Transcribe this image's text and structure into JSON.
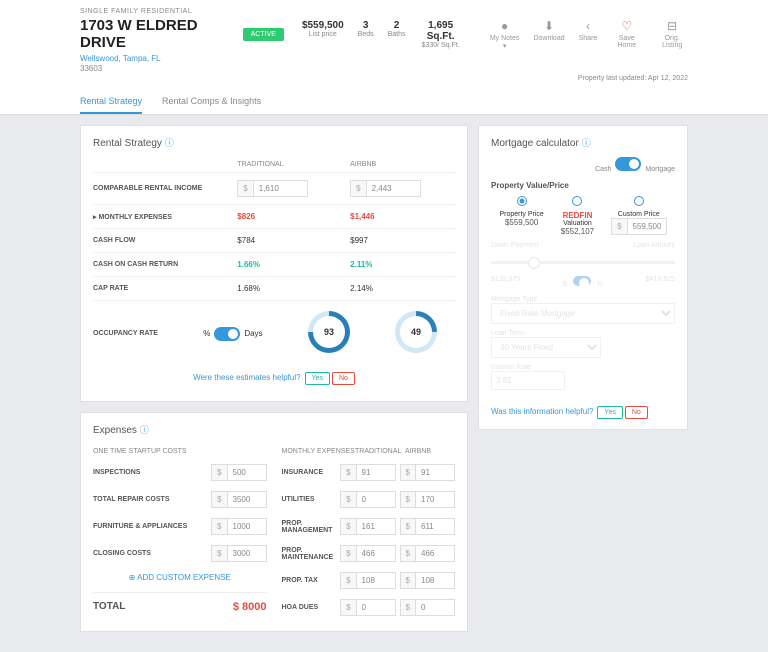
{
  "header": {
    "ptype": "SINGLE FAMILY RESIDENTIAL",
    "address": "1703 W ELDRED DRIVE",
    "status": "ACTIVE",
    "location": "Wellswood, Tampa, FL",
    "zip": "33603",
    "updated": "Property last updated: Apr 12, 2022"
  },
  "stats": [
    {
      "v": "$559,500",
      "l": "List price"
    },
    {
      "v": "3",
      "l": "Beds"
    },
    {
      "v": "2",
      "l": "Baths"
    },
    {
      "v": "1,695 Sq.Ft.",
      "l": "$330/ Sq.Ft."
    }
  ],
  "actions": [
    {
      "l": "My Notes ▾"
    },
    {
      "l": "Download"
    },
    {
      "l": "Share"
    },
    {
      "l": "Save Home"
    },
    {
      "l": "Orig. Listing"
    }
  ],
  "tabs": [
    {
      "l": "Rental Strategy",
      "a": true
    },
    {
      "l": "Rental Comps & Insights",
      "a": false
    }
  ],
  "rental": {
    "title": "Rental Strategy",
    "cols": [
      "TRADITIONAL",
      "AIRBNB"
    ],
    "rows": [
      {
        "lbl": "COMPARABLE RENTAL INCOME",
        "t": "1,610",
        "a": "2,443",
        "type": "input"
      },
      {
        "lbl": "▸ MONTHLY EXPENSES",
        "t": "$826",
        "a": "$1,446",
        "type": "red"
      },
      {
        "lbl": "CASH FLOW",
        "t": "$784",
        "a": "$997",
        "type": "plain"
      },
      {
        "lbl": "CASH ON CASH RETURN",
        "t": "1.66%",
        "a": "2.11%",
        "type": "grn"
      },
      {
        "lbl": "CAP RATE",
        "t": "1.68%",
        "a": "2.14%",
        "type": "plain"
      }
    ],
    "occ": {
      "lbl": "OCCUPANCY RATE",
      "unit1": "%",
      "unit2": "Days",
      "v1": "93",
      "v2": "49"
    },
    "helpful": "Were these estimates helpful?",
    "yes": "Yes",
    "no": "No"
  },
  "expenses": {
    "title": "Expenses",
    "h1": "ONE TIME STARTUP COSTS",
    "h2": "MONTHLY EXPENSES",
    "h3": "TRADITIONAL",
    "h4": "AIRBNB",
    "startup": [
      {
        "l": "INSPECTIONS",
        "v": "500"
      },
      {
        "l": "TOTAL REPAIR COSTS",
        "v": "3500"
      },
      {
        "l": "FURNITURE & APPLIANCES",
        "v": "1000"
      },
      {
        "l": "CLOSING COSTS",
        "v": "3000"
      }
    ],
    "monthly": [
      {
        "l": "INSURANCE",
        "t": "91",
        "a": "91"
      },
      {
        "l": "UTILITIES",
        "t": "0",
        "a": "170"
      },
      {
        "l": "PROP. MANAGEMENT",
        "t": "161",
        "a": "611"
      },
      {
        "l": "PROP. MAINTENANCE",
        "t": "466",
        "a": "466"
      },
      {
        "l": "PROP. TAX",
        "t": "108",
        "a": "108"
      },
      {
        "l": "HOA DUES",
        "t": "0",
        "a": "0"
      }
    ],
    "add": "ADD CUSTOM EXPENSE",
    "total_l": "TOTAL",
    "total_v": "$ 8000"
  },
  "mortgage": {
    "title": "Mortgage calculator",
    "tog1": "Cash",
    "tog2": "Mortgage",
    "sec": "Property Value/Price",
    "opts": [
      {
        "l1": "Property Price",
        "l2": "$559,500",
        "on": true
      },
      {
        "l1": "Valuation",
        "l2": "$552,107",
        "redfin": true
      },
      {
        "l1": "Custom Price",
        "l2": "559,500",
        "input": true
      }
    ],
    "dp": "Down Payment",
    "la": "Loan Amount",
    "dpv": "$139,875",
    "lav": "$419,625",
    "mt": "Mortgage Type",
    "mtv": "Fixed Rate Mortgage",
    "lt": "Loan Term",
    "ltv": "30 Years Fixed",
    "ir": "Interest Rate",
    "irv": "3.81",
    "helpful": "Was this information helpful?",
    "yes": "Yes",
    "no": "No"
  }
}
